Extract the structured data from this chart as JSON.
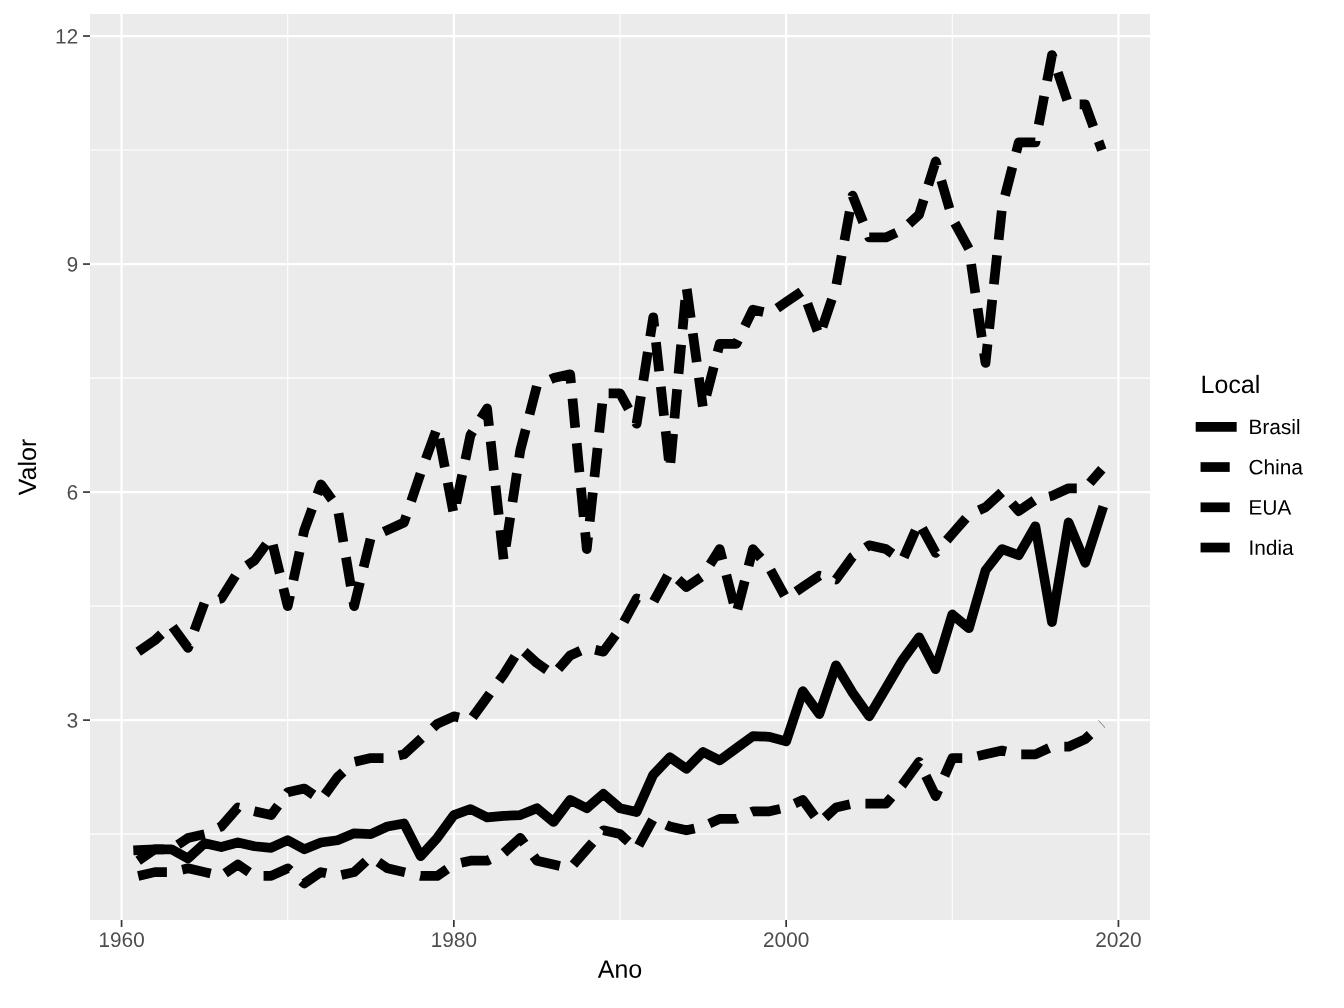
{
  "chart_data": {
    "type": "line",
    "xlabel": "Ano",
    "ylabel": "Valor",
    "legend_title": "Local",
    "x": [
      1961,
      1962,
      1963,
      1964,
      1965,
      1966,
      1967,
      1968,
      1969,
      1970,
      1971,
      1972,
      1973,
      1974,
      1975,
      1976,
      1977,
      1978,
      1979,
      1980,
      1981,
      1982,
      1983,
      1984,
      1985,
      1986,
      1987,
      1988,
      1989,
      1990,
      1991,
      1992,
      1993,
      1994,
      1995,
      1996,
      1997,
      1998,
      1999,
      2000,
      2001,
      2002,
      2003,
      2004,
      2005,
      2006,
      2007,
      2008,
      2009,
      2010,
      2011,
      2012,
      2013,
      2014,
      2015,
      2016,
      2017,
      2018,
      2019
    ],
    "series": [
      {
        "name": "Brasil",
        "color": "#000000",
        "line_style": "solid",
        "values": [
          1.29,
          1.3,
          1.3,
          1.18,
          1.38,
          1.33,
          1.39,
          1.34,
          1.32,
          1.42,
          1.3,
          1.39,
          1.42,
          1.51,
          1.5,
          1.6,
          1.64,
          1.21,
          1.45,
          1.75,
          1.83,
          1.72,
          1.74,
          1.75,
          1.84,
          1.66,
          1.95,
          1.84,
          2.03,
          1.84,
          1.79,
          2.28,
          2.51,
          2.36,
          2.58,
          2.47,
          2.63,
          2.79,
          2.78,
          2.72,
          3.38,
          3.08,
          3.72,
          3.36,
          3.05,
          3.42,
          3.79,
          4.09,
          3.67,
          4.39,
          4.21,
          4.97,
          5.25,
          5.17,
          5.55,
          4.29,
          5.6,
          5.07,
          5.75
        ]
      },
      {
        "name": "China",
        "color": "#000000",
        "line_style": "dashed",
        "values": [
          1.15,
          1.3,
          1.3,
          1.45,
          1.5,
          1.6,
          1.85,
          1.8,
          1.75,
          2.05,
          2.1,
          1.95,
          2.25,
          2.45,
          2.5,
          2.5,
          2.55,
          2.75,
          2.95,
          3.05,
          3.0,
          3.3,
          3.6,
          3.95,
          3.75,
          3.6,
          3.85,
          3.95,
          3.9,
          4.2,
          4.6,
          4.55,
          4.95,
          4.75,
          4.9,
          5.25,
          4.4,
          5.25,
          5.0,
          4.6,
          4.75,
          4.9,
          4.85,
          5.15,
          5.3,
          5.25,
          5.1,
          5.6,
          5.2,
          5.45,
          5.7,
          5.8,
          6.0,
          5.75,
          5.9,
          5.95,
          6.05,
          6.05,
          6.3
        ]
      },
      {
        "name": "EUA",
        "color": "#000000",
        "line_style": "dashed",
        "values": [
          3.9,
          4.05,
          4.25,
          3.95,
          4.55,
          4.6,
          4.95,
          5.1,
          5.4,
          4.5,
          5.5,
          6.1,
          5.8,
          4.5,
          5.4,
          5.5,
          5.6,
          6.25,
          6.85,
          5.7,
          6.75,
          7.1,
          5.1,
          6.55,
          7.4,
          7.5,
          7.55,
          5.25,
          7.3,
          7.3,
          6.9,
          8.3,
          6.3,
          8.7,
          7.1,
          7.95,
          7.95,
          8.4,
          8.35,
          8.5,
          8.65,
          8.05,
          8.7,
          9.9,
          9.35,
          9.35,
          9.45,
          9.65,
          10.35,
          9.6,
          9.2,
          7.7,
          9.75,
          10.6,
          10.6,
          11.75,
          11.1,
          11.1,
          10.5
        ]
      },
      {
        "name": "India",
        "color": "#000000",
        "line_style": "dashed",
        "values": [
          0.95,
          1.0,
          1.0,
          1.05,
          1.0,
          0.95,
          1.1,
          0.95,
          0.95,
          1.05,
          0.85,
          1.0,
          0.95,
          1.0,
          1.2,
          1.05,
          1.0,
          0.95,
          0.95,
          1.1,
          1.15,
          1.15,
          1.25,
          1.45,
          1.15,
          1.1,
          1.05,
          1.3,
          1.55,
          1.5,
          1.3,
          1.7,
          1.6,
          1.55,
          1.6,
          1.7,
          1.7,
          1.8,
          1.8,
          1.85,
          1.95,
          1.65,
          1.85,
          1.9,
          1.9,
          1.9,
          2.15,
          2.45,
          2.0,
          2.5,
          2.5,
          2.55,
          2.6,
          2.55,
          2.55,
          2.65,
          2.65,
          2.75,
          2.95
        ]
      }
    ],
    "xlim": [
      1958.1,
      2021.9
    ],
    "xticks": [
      1960,
      1980,
      2000,
      2020
    ],
    "ylim": [
      0.37,
      12.29
    ],
    "yticks": [
      3,
      6,
      9,
      12
    ],
    "grid": true,
    "legend": "right"
  }
}
